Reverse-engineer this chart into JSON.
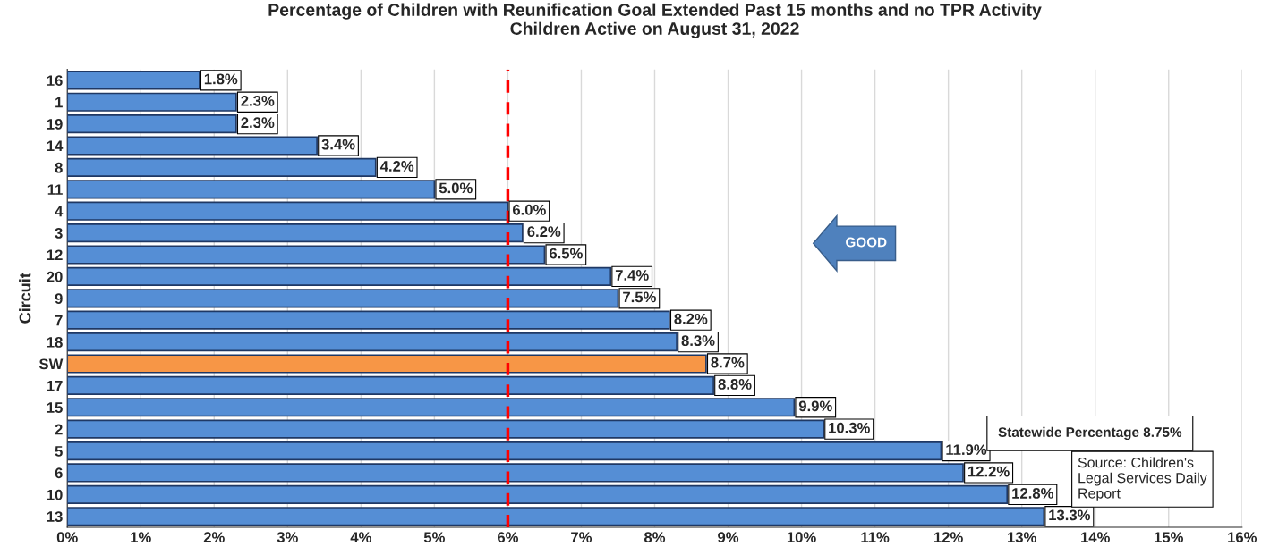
{
  "chart_data": {
    "type": "bar",
    "orientation": "horizontal",
    "title": "Percentage of Children with Reunification Goal Extended Past 15 months and no TPR Activity\nChildren Active on August 31, 2022",
    "ylabel": "Circuit",
    "categories": [
      "16",
      "1",
      "19",
      "14",
      "8",
      "11",
      "4",
      "3",
      "12",
      "20",
      "9",
      "7",
      "18",
      "SW",
      "17",
      "15",
      "2",
      "5",
      "6",
      "10",
      "13"
    ],
    "values": [
      1.8,
      2.3,
      2.3,
      3.4,
      4.2,
      5.0,
      6.0,
      6.2,
      6.5,
      7.4,
      7.5,
      8.2,
      8.3,
      8.7,
      8.8,
      9.9,
      10.3,
      11.9,
      12.2,
      12.8,
      13.3
    ],
    "value_labels": [
      "1.8%",
      "2.3%",
      "2.3%",
      "3.4%",
      "4.2%",
      "5.0%",
      "6.0%",
      "6.2%",
      "6.5%",
      "7.4%",
      "7.5%",
      "8.2%",
      "8.3%",
      "8.7%",
      "8.8%",
      "9.9%",
      "10.3%",
      "11.9%",
      "12.2%",
      "12.8%",
      "13.3%"
    ],
    "colors": [
      "#558ed5",
      "#558ed5",
      "#558ed5",
      "#558ed5",
      "#558ed5",
      "#558ed5",
      "#558ed5",
      "#558ed5",
      "#558ed5",
      "#558ed5",
      "#558ed5",
      "#558ed5",
      "#558ed5",
      "#f79646",
      "#558ed5",
      "#558ed5",
      "#558ed5",
      "#558ed5",
      "#558ed5",
      "#558ed5",
      "#558ed5"
    ],
    "xlim": [
      0,
      16
    ],
    "xticks": [
      {
        "value": 0,
        "label": "0%"
      },
      {
        "value": 1,
        "label": "1%"
      },
      {
        "value": 2,
        "label": "2%"
      },
      {
        "value": 3,
        "label": "3%"
      },
      {
        "value": 4,
        "label": "4%"
      },
      {
        "value": 5,
        "label": "5%"
      },
      {
        "value": 6,
        "label": "6%"
      },
      {
        "value": 7,
        "label": "7%"
      },
      {
        "value": 8,
        "label": "8%"
      },
      {
        "value": 9,
        "label": "9%"
      },
      {
        "value": 10,
        "label": "10%"
      },
      {
        "value": 11,
        "label": "11%"
      },
      {
        "value": 12,
        "label": "12%"
      },
      {
        "value": 13,
        "label": "13%"
      },
      {
        "value": 14,
        "label": "14%"
      },
      {
        "value": 15,
        "label": "15%"
      },
      {
        "value": 16,
        "label": "16%"
      }
    ],
    "grid": "x",
    "ref_lines": [
      {
        "axis": "x",
        "value": 6,
        "color": "#ff0000",
        "line_style": "dashed"
      }
    ],
    "annotations": [
      "GOOD",
      "Statewide Percentage 8.75%",
      "Source: Children's\nLegal Services Daily\nReport"
    ]
  }
}
